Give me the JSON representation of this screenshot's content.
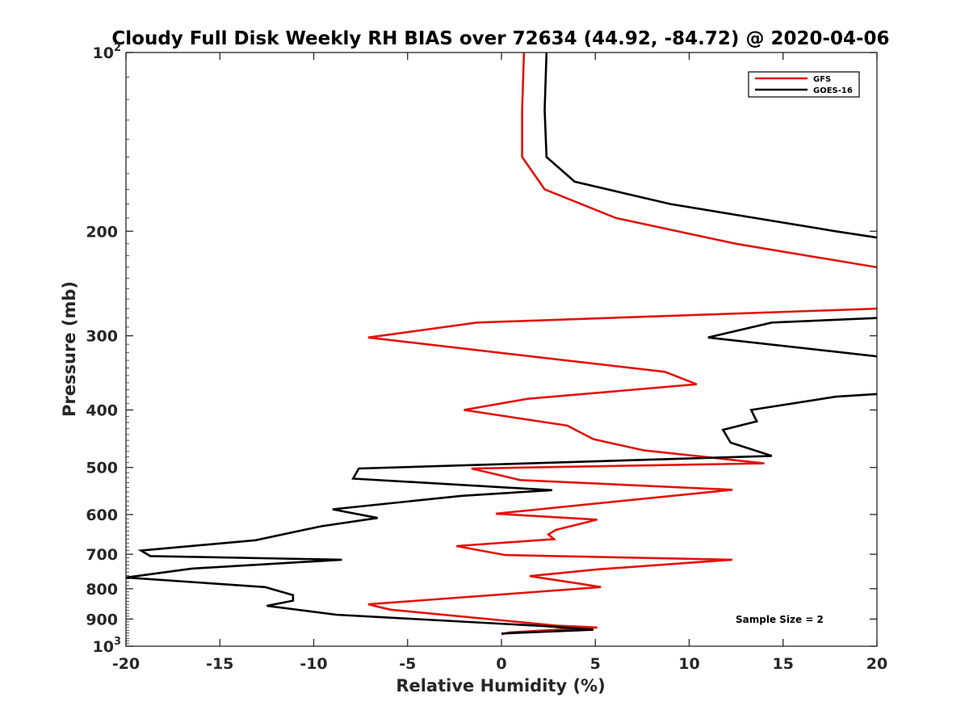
{
  "chart_data": {
    "type": "line",
    "title": "Cloudy Full Disk Weekly RH BIAS over 72634 (44.92, -84.72) @ 2020-04-06",
    "xlabel": "Relative Humidity (%)",
    "ylabel": "Pressure (mb)",
    "xlim": [
      -20,
      20
    ],
    "ylim": [
      100,
      1000
    ],
    "yscale": "log",
    "y_reversed": true,
    "grid": false,
    "legend_position": "top-right",
    "x_ticks": [
      {
        "value": -20,
        "label": "-20"
      },
      {
        "value": -15,
        "label": "-15"
      },
      {
        "value": -10,
        "label": "-10"
      },
      {
        "value": -5,
        "label": "-5"
      },
      {
        "value": 0,
        "label": "0"
      },
      {
        "value": 5,
        "label": "5"
      },
      {
        "value": 10,
        "label": "10"
      },
      {
        "value": 15,
        "label": "15"
      },
      {
        "value": 20,
        "label": "20"
      }
    ],
    "y_ticks": [
      {
        "value": 100,
        "label": "10",
        "exp": "2"
      },
      {
        "value": 200,
        "label": "200",
        "exp": ""
      },
      {
        "value": 300,
        "label": "300",
        "exp": ""
      },
      {
        "value": 400,
        "label": "400",
        "exp": ""
      },
      {
        "value": 500,
        "label": "500",
        "exp": ""
      },
      {
        "value": 600,
        "label": "600",
        "exp": ""
      },
      {
        "value": 700,
        "label": "700",
        "exp": ""
      },
      {
        "value": 800,
        "label": "800",
        "exp": ""
      },
      {
        "value": 900,
        "label": "900",
        "exp": ""
      },
      {
        "value": 1000,
        "label": "10",
        "exp": "3"
      }
    ],
    "series": [
      {
        "name": "GFS",
        "color": "#e3120b",
        "segments": [
          [
            [
              1.2,
              100
            ],
            [
              1.1,
              125
            ],
            [
              1.1,
              150
            ],
            [
              2.3,
              170
            ],
            [
              6.1,
              190
            ],
            [
              12.5,
              210
            ],
            [
              20,
              230
            ]
          ],
          [
            [
              20,
              270
            ],
            [
              -1.3,
              285
            ],
            [
              -7.1,
              302
            ],
            [
              8.7,
              345
            ],
            [
              10.4,
              362
            ],
            [
              1.4,
              383
            ],
            [
              -2.0,
              400
            ],
            [
              3.5,
              425
            ],
            [
              4.9,
              448
            ],
            [
              7.6,
              468
            ],
            [
              13.5,
              490
            ],
            [
              14.0,
              492
            ],
            [
              -1.6,
              502
            ],
            [
              1.0,
              525
            ],
            [
              12.3,
              545
            ],
            [
              -0.3,
              598
            ],
            [
              5.1,
              612
            ],
            [
              2.9,
              637
            ],
            [
              2.5,
              648
            ],
            [
              2.8,
              660
            ],
            [
              -2.4,
              678
            ],
            [
              0.2,
              702
            ],
            [
              12.3,
              715
            ],
            [
              5.2,
              742
            ],
            [
              1.5,
              762
            ],
            [
              4.2,
              785
            ],
            [
              5.3,
              795
            ],
            [
              -7.1,
              850
            ],
            [
              -5.9,
              868
            ],
            [
              2.9,
              923
            ],
            [
              5.1,
              930
            ],
            [
              0.4,
              948
            ],
            [
              0.0,
              955
            ]
          ]
        ]
      },
      {
        "name": "GOES-16",
        "color": "#000000",
        "segments": [
          [
            [
              2.4,
              100
            ],
            [
              2.3,
              125
            ],
            [
              2.4,
              150
            ],
            [
              3.9,
              165
            ],
            [
              9.0,
              180
            ],
            [
              17.8,
              200
            ],
            [
              20,
              205
            ]
          ],
          [
            [
              20,
              280
            ],
            [
              14.4,
              285
            ],
            [
              11.0,
              302
            ],
            [
              20,
              325
            ]
          ],
          [
            [
              20,
              376
            ],
            [
              17.8,
              380
            ],
            [
              13.3,
              400
            ],
            [
              13.6,
              418
            ],
            [
              11.8,
              432
            ],
            [
              12.2,
              454
            ],
            [
              14.4,
              478
            ],
            [
              -7.6,
              502
            ],
            [
              -7.9,
              522
            ],
            [
              2.7,
              546
            ],
            [
              -2.1,
              558
            ],
            [
              -9.0,
              588
            ],
            [
              -6.6,
              608
            ],
            [
              -9.6,
              628
            ],
            [
              -13.1,
              663
            ],
            [
              -19.2,
              690
            ],
            [
              -18.7,
              705
            ],
            [
              -8.5,
              715
            ],
            [
              -16.5,
              740
            ],
            [
              -20.0,
              766
            ],
            [
              -12.6,
              795
            ],
            [
              -11.1,
              820
            ],
            [
              -11.1,
              838
            ],
            [
              -12.5,
              855
            ],
            [
              -8.8,
              885
            ],
            [
              2.3,
              925
            ],
            [
              4.9,
              938
            ],
            [
              0.0,
              952
            ]
          ]
        ]
      }
    ],
    "annotations": [
      "Sample Size = 2"
    ]
  }
}
